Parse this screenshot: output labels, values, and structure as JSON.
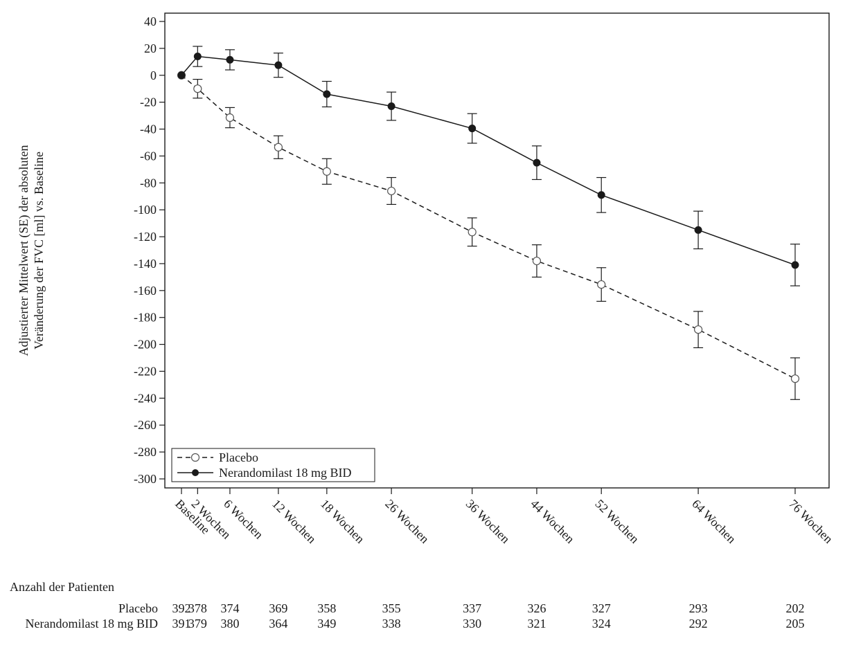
{
  "chart_data": {
    "type": "line",
    "ylabel_lines": [
      "Adjustierter Mittelwert (SE) der absoluten",
      "Veränderung der FVC [ml] vs. Baseline"
    ],
    "x_weeks": [
      0,
      2,
      6,
      12,
      18,
      26,
      36,
      44,
      52,
      64,
      76
    ],
    "x_tick_labels": [
      "Baseline",
      "2 Wochen",
      "6 Wochen",
      "12 Wochen",
      "18 Wochen",
      "26 Wochen",
      "36 Wochen",
      "44 Wochen",
      "52 Wochen",
      "64 Wochen",
      "76 Wochen"
    ],
    "ylim": [
      -300,
      40
    ],
    "y_ticks": [
      40,
      20,
      0,
      -20,
      -40,
      -60,
      -80,
      -100,
      -120,
      -140,
      -160,
      -180,
      -200,
      -220,
      -240,
      -260,
      -280,
      -300
    ],
    "legend_position": "bottom-left",
    "series": [
      {
        "name": "Placebo",
        "style": "dashed",
        "marker": "open-circle",
        "values": [
          0,
          -10,
          -31.5,
          -53.5,
          -71.5,
          -86,
          -116.5,
          -138,
          -155.5,
          -189,
          -225.5
        ],
        "se": [
          0,
          7,
          7.5,
          8.5,
          9.5,
          10,
          10.5,
          12,
          12.5,
          13.5,
          15.5
        ]
      },
      {
        "name": "Nerandomilast 18 mg BID",
        "style": "solid",
        "marker": "filled-circle",
        "values": [
          0,
          14,
          11.5,
          7.5,
          -14,
          -23,
          -39.5,
          -65,
          -89,
          -115,
          -141
        ],
        "se": [
          0,
          7.5,
          7.5,
          9,
          9.5,
          10.5,
          11,
          12.5,
          13,
          14,
          15.5
        ]
      }
    ]
  },
  "patients": {
    "title": "Anzahl der Patienten",
    "rows": [
      {
        "label": "Placebo",
        "counts": [
          "392",
          "378",
          "374",
          "369",
          "358",
          "355",
          "337",
          "326",
          "327",
          "293",
          "202"
        ]
      },
      {
        "label": "Nerandomilast 18 mg BID",
        "counts": [
          "391",
          "379",
          "380",
          "364",
          "349",
          "338",
          "330",
          "321",
          "324",
          "292",
          "205"
        ]
      }
    ]
  },
  "colors": {
    "line": "#1a1a1a",
    "axis": "#1a1a1a",
    "open_marker_stroke": "#555555"
  }
}
